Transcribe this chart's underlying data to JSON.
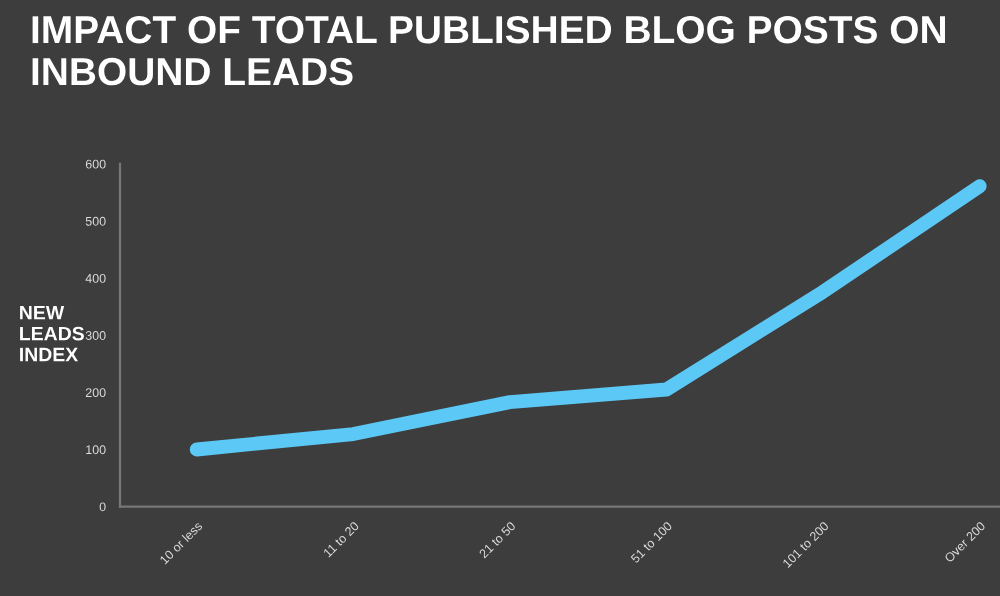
{
  "chart_data": {
    "type": "line",
    "title": "IMPACT OF TOTAL PUBLISHED BLOG POSTS ON INBOUND LEADS",
    "ylabel": "NEW\nLEADS\nINDEX",
    "categories": [
      "10 or less",
      "11 to 20",
      "21 to 50",
      "51 to 100",
      "101 to 200",
      "Over 200"
    ],
    "series": [
      {
        "color": "#5bc8f5",
        "values": [
          100,
          127,
          183,
          205,
          376,
          561
        ]
      }
    ],
    "ylim": [
      0,
      600
    ],
    "yticks": [
      0,
      100,
      200,
      300,
      400,
      500,
      600
    ],
    "grid": false,
    "legend": false,
    "marker": "none",
    "line_style": "solid"
  }
}
